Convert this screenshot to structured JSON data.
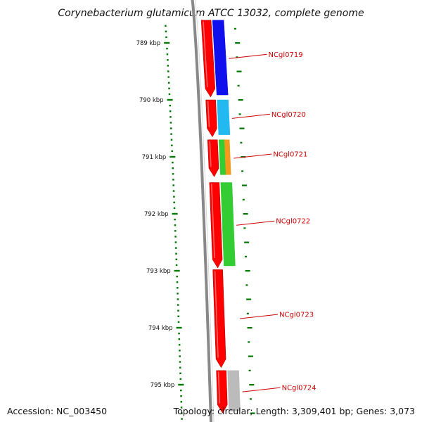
{
  "title": "Corynebacterium glutamicum ATCC 13032, complete genome",
  "colors": {
    "forward_cds": "#ff0000",
    "backbone": "#888888",
    "tick": "#007700",
    "label": "#cc0000",
    "blue": "#1010ee",
    "cyan": "#22b8f0",
    "green": "#33cc33",
    "orange": "#f39a1c",
    "gray": "#bbbbbb"
  },
  "scale_labels": [
    "789 kbp",
    "790 kbp",
    "791 kbp",
    "792 kbp",
    "793 kbp",
    "794 kbp",
    "795 kbp"
  ],
  "genes": [
    {
      "id": "NCgl0719",
      "start_kbp": 788.6,
      "end_kbp": 789.95,
      "cog_color": "blue"
    },
    {
      "id": "NCgl0720",
      "start_kbp": 790.0,
      "end_kbp": 790.65,
      "cog_color": "cyan"
    },
    {
      "id": "NCgl0721",
      "start_kbp": 790.7,
      "end_kbp": 791.35,
      "cog_color": "green",
      "cog_color_2": "orange"
    },
    {
      "id": "NCgl0722",
      "start_kbp": 791.45,
      "end_kbp": 792.95,
      "cog_color": "green"
    },
    {
      "id": "NCgl0723",
      "start_kbp": 792.98,
      "end_kbp": 794.7,
      "cog_color": "none"
    },
    {
      "id": "NCgl0724",
      "start_kbp": 794.75,
      "end_kbp": 795.5,
      "cog_color": "gray"
    }
  ],
  "accession": "Accession: NC_003450",
  "topology": "Topology: circular; Length: 3,309,401 bp; Genes: 3,073"
}
